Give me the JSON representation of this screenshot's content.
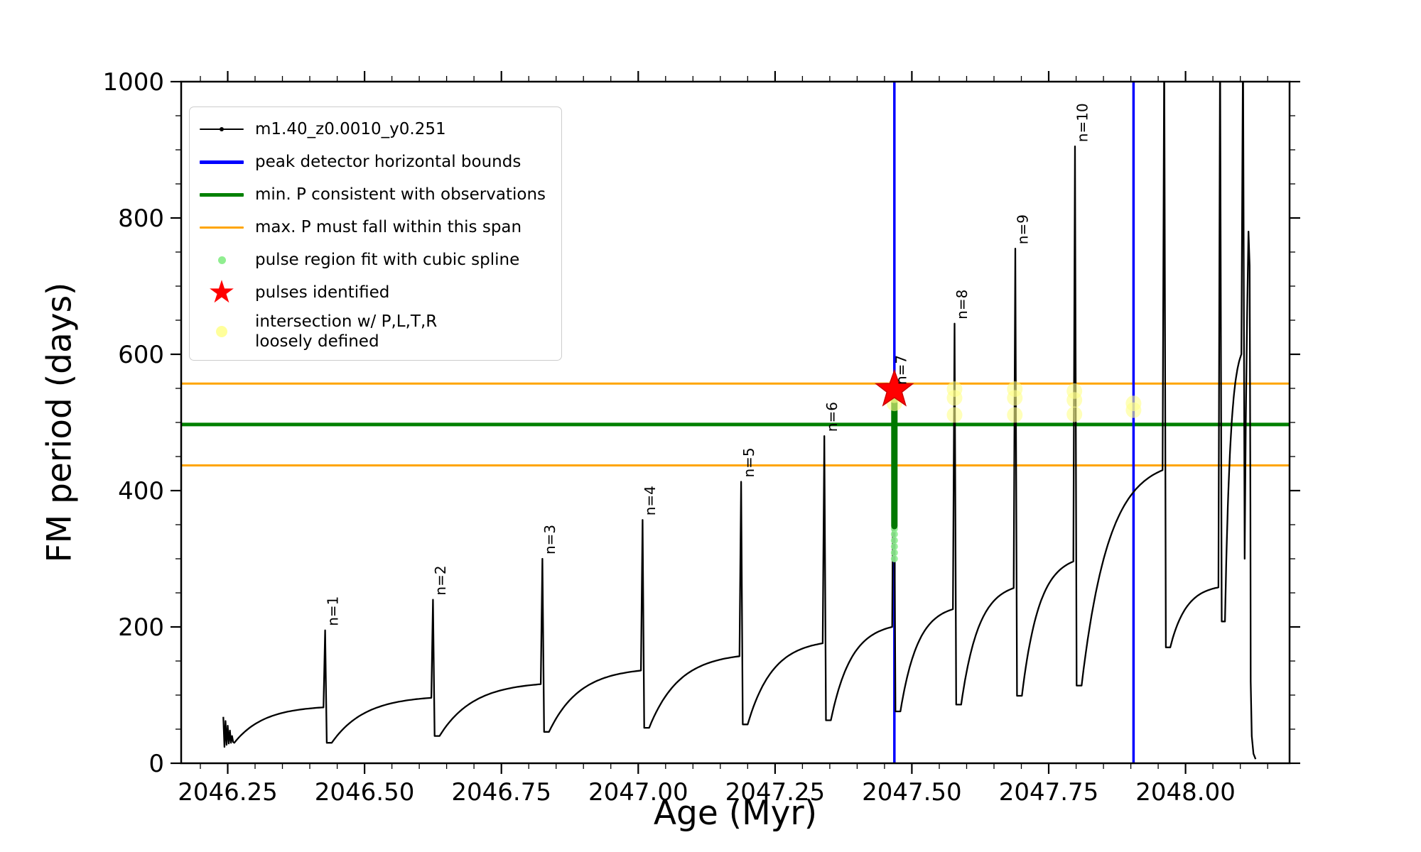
{
  "chart_data": {
    "type": "line",
    "title": "",
    "xlabel": "Age (Myr)",
    "ylabel": "FM period (days)",
    "xlim": [
      2046.165,
      2048.19
    ],
    "ylim": [
      0,
      1000
    ],
    "x_ticks": [
      2046.25,
      2046.5,
      2046.75,
      2047.0,
      2047.25,
      2047.5,
      2047.75,
      2048.0
    ],
    "x_tick_labels": [
      "2046.25",
      "2046.50",
      "2046.75",
      "2047.00",
      "2047.25",
      "2047.50",
      "2047.75",
      "2048.00"
    ],
    "y_ticks": [
      0,
      200,
      400,
      600,
      800,
      1000
    ],
    "x_minor_step": 0.05,
    "y_minor_step": 50,
    "grid": false,
    "legend_position": "upper left",
    "colors": {
      "track": "#000000",
      "bounds": "#0000ff",
      "min_p": "#008000",
      "max_p_span": "#FFA500",
      "pulse_fit": "#90EE90",
      "pulse_star": "#FF0000",
      "intersection": "#FFFF8A"
    },
    "legend": [
      {
        "label": "m1.40_z0.0010_y0.251",
        "marker": "black-line-with-dot"
      },
      {
        "label": "peak detector horizontal bounds",
        "marker": "blue-line"
      },
      {
        "label": "min. P consistent with observations",
        "marker": "green-line"
      },
      {
        "label": "max. P must fall within this span",
        "marker": "orange-line"
      },
      {
        "label": "pulse region fit with cubic spline",
        "marker": "lightgreen-dot"
      },
      {
        "label": "pulses identified",
        "marker": "red-star"
      },
      {
        "label": "intersection w/ P,L,T,R\nloosely defined",
        "marker": "yellow-dot"
      }
    ],
    "vlines": [
      2047.468,
      2047.905
    ],
    "hlines": {
      "green": 497,
      "orange": [
        437,
        557
      ]
    },
    "star": {
      "x": 2047.468,
      "y": 548
    },
    "pulse_bar": {
      "x": 2047.468,
      "y0": 348,
      "y1": 543
    },
    "lightgreen_points": [
      [
        2047.468,
        300
      ],
      [
        2047.468,
        309
      ],
      [
        2047.468,
        318
      ],
      [
        2047.468,
        327
      ],
      [
        2047.468,
        336
      ],
      [
        2047.468,
        344
      ],
      [
        2047.468,
        548
      ],
      [
        2047.468,
        552
      ]
    ],
    "yellow_points": [
      [
        2047.468,
        552
      ],
      [
        2047.468,
        540
      ],
      [
        2047.468,
        528
      ],
      [
        2047.578,
        549
      ],
      [
        2047.578,
        536
      ],
      [
        2047.578,
        511
      ],
      [
        2047.688,
        549
      ],
      [
        2047.688,
        536
      ],
      [
        2047.688,
        511
      ],
      [
        2047.797,
        546
      ],
      [
        2047.797,
        533
      ],
      [
        2047.797,
        512
      ],
      [
        2047.905,
        528
      ],
      [
        2047.905,
        518
      ]
    ],
    "series": {
      "initial_cluster": [
        [
          2046.242,
          68
        ],
        [
          2046.244,
          24
        ],
        [
          2046.246,
          62
        ],
        [
          2046.248,
          27
        ],
        [
          2046.25,
          55
        ],
        [
          2046.252,
          29
        ],
        [
          2046.254,
          48
        ],
        [
          2046.256,
          30
        ],
        [
          2046.258,
          40
        ],
        [
          2046.26,
          31
        ],
        [
          2046.262,
          30
        ]
      ],
      "teeth": [
        {
          "x0": 2046.262,
          "y0": 30,
          "x1": 2046.425,
          "y1": 82,
          "peak": 195,
          "label": "n=1"
        },
        {
          "x0": 2046.44,
          "y0": 30,
          "x1": 2046.622,
          "y1": 96,
          "peak": 240,
          "label": "n=2"
        },
        {
          "x0": 2046.637,
          "y0": 40,
          "x1": 2046.822,
          "y1": 116,
          "peak": 300,
          "label": "n=3"
        },
        {
          "x0": 2046.837,
          "y0": 46,
          "x1": 2047.005,
          "y1": 136,
          "peak": 357,
          "label": "n=4"
        },
        {
          "x0": 2047.02,
          "y0": 52,
          "x1": 2047.185,
          "y1": 157,
          "peak": 413,
          "label": "n=5"
        },
        {
          "x0": 2047.2,
          "y0": 57,
          "x1": 2047.337,
          "y1": 176,
          "peak": 480,
          "label": "n=6"
        },
        {
          "x0": 2047.352,
          "y0": 63,
          "x1": 2047.464,
          "y1": 200,
          "peak": 549,
          "label": "n=7"
        },
        {
          "x0": 2047.479,
          "y0": 76,
          "x1": 2047.575,
          "y1": 226,
          "peak": 645,
          "label": "n=8"
        },
        {
          "x0": 2047.59,
          "y0": 86,
          "x1": 2047.686,
          "y1": 257,
          "peak": 755,
          "label": "n=9"
        },
        {
          "x0": 2047.701,
          "y0": 99,
          "x1": 2047.795,
          "y1": 296,
          "peak": 905,
          "label": "n=10"
        },
        {
          "x0": 2047.81,
          "y0": 114,
          "x1": 2047.958,
          "y1": 430,
          "peak": 1060,
          "label": ""
        },
        {
          "x0": 2047.972,
          "y0": 170,
          "x1": 2048.06,
          "y1": 258,
          "peak": 1060,
          "label": ""
        },
        {
          "x0": 2048.072,
          "y0": 208,
          "x1": 2048.102,
          "y1": 600,
          "peak": 1060,
          "label": ""
        }
      ],
      "final_segment": [
        [
          2048.108,
          300
        ],
        [
          2048.11,
          500
        ],
        [
          2048.1125,
          660
        ],
        [
          2048.115,
          780
        ],
        [
          2048.117,
          730
        ],
        [
          2048.1185,
          380
        ],
        [
          2048.119,
          120
        ],
        [
          2048.121,
          40
        ],
        [
          2048.124,
          14
        ],
        [
          2048.128,
          6
        ]
      ]
    }
  }
}
